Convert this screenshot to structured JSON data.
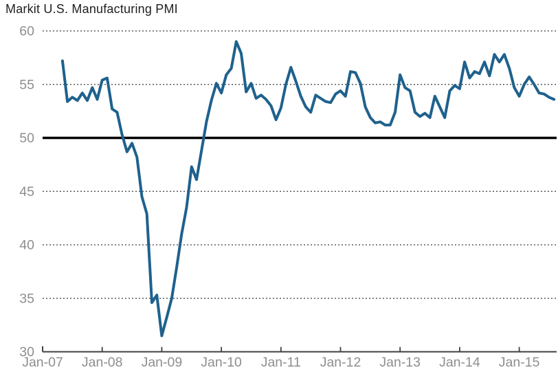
{
  "title": "Markit U.S. Manufacturing PMI",
  "chart_data": {
    "type": "line",
    "title": "Markit U.S. Manufacturing PMI",
    "xlabel": "",
    "ylabel": "",
    "ylim": [
      30,
      60
    ],
    "y_ticks": [
      30,
      35,
      40,
      45,
      50,
      55,
      60
    ],
    "x_tick_labels": [
      "Jan-07",
      "Jan-08",
      "Jan-09",
      "Jan-10",
      "Jan-11",
      "Jan-12",
      "Jan-13",
      "Jan-14",
      "Jan-15"
    ],
    "grid": "dotted horizontal gridlines, heavy solid reference line at 50",
    "baseline": 50,
    "legend": "none",
    "series": [
      {
        "name": "Markit U.S. Manufacturing PMI",
        "frequency": "monthly",
        "months": [
          "May-07",
          "Jun-07",
          "Jul-07",
          "Aug-07",
          "Sep-07",
          "Oct-07",
          "Nov-07",
          "Dec-07",
          "Jan-08",
          "Feb-08",
          "Mar-08",
          "Apr-08",
          "May-08",
          "Jun-08",
          "Jul-08",
          "Aug-08",
          "Sep-08",
          "Oct-08",
          "Nov-08",
          "Dec-08",
          "Jan-09",
          "Feb-09",
          "Mar-09",
          "Apr-09",
          "May-09",
          "Jun-09",
          "Jul-09",
          "Aug-09",
          "Sep-09",
          "Oct-09",
          "Nov-09",
          "Dec-09",
          "Jan-10",
          "Feb-10",
          "Mar-10",
          "Apr-10",
          "May-10",
          "Jun-10",
          "Jul-10",
          "Aug-10",
          "Sep-10",
          "Oct-10",
          "Nov-10",
          "Dec-10",
          "Jan-11",
          "Feb-11",
          "Mar-11",
          "Apr-11",
          "May-11",
          "Jun-11",
          "Jul-11",
          "Aug-11",
          "Sep-11",
          "Oct-11",
          "Nov-11",
          "Dec-11",
          "Jan-12",
          "Feb-12",
          "Mar-12",
          "Apr-12",
          "May-12",
          "Jun-12",
          "Jul-12",
          "Aug-12",
          "Sep-12",
          "Oct-12",
          "Nov-12",
          "Dec-12",
          "Jan-13",
          "Feb-13",
          "Mar-13",
          "Apr-13",
          "May-13",
          "Jun-13",
          "Jul-13",
          "Aug-13",
          "Sep-13",
          "Oct-13",
          "Nov-13",
          "Dec-13",
          "Jan-14",
          "Feb-14",
          "Mar-14",
          "Apr-14",
          "May-14",
          "Jun-14",
          "Jul-14",
          "Aug-14",
          "Sep-14",
          "Oct-14",
          "Nov-14",
          "Dec-14",
          "Jan-15",
          "Feb-15",
          "Mar-15",
          "Apr-15",
          "May-15",
          "Jun-15",
          "Jul-15",
          "Aug-15"
        ],
        "values": [
          57.2,
          53.4,
          53.8,
          53.5,
          54.2,
          53.5,
          54.7,
          53.6,
          55.4,
          55.6,
          52.7,
          52.4,
          50.3,
          48.7,
          49.5,
          48.2,
          44.5,
          42.9,
          34.6,
          35.3,
          31.5,
          33.2,
          35.0,
          37.9,
          41.0,
          43.5,
          47.3,
          46.1,
          48.8,
          51.5,
          53.5,
          55.1,
          54.2,
          55.9,
          56.5,
          59.0,
          57.9,
          54.3,
          55.1,
          53.7,
          54.0,
          53.6,
          53.0,
          51.7,
          52.8,
          55.0,
          56.6,
          55.3,
          53.9,
          52.9,
          52.4,
          54.0,
          53.7,
          53.4,
          53.3,
          54.1,
          54.4,
          53.9,
          56.2,
          56.1,
          55.1,
          52.9,
          51.9,
          51.4,
          51.5,
          51.2,
          51.2,
          52.4,
          55.9,
          54.7,
          54.4,
          52.4,
          52.0,
          52.3,
          51.9,
          53.9,
          52.9,
          51.9,
          54.4,
          54.9,
          54.6,
          57.1,
          55.6,
          56.2,
          56.0,
          57.1,
          55.8,
          57.8,
          57.1,
          57.8,
          56.5,
          54.7,
          53.9,
          55.0,
          55.7,
          55.0,
          54.2,
          54.1,
          53.8,
          53.6
        ]
      }
    ],
    "colors": {
      "line": "#1F618D",
      "baseline": "#000000",
      "grid": "#3a3a3a",
      "axis": "#404040",
      "tick_label": "#8e8e8e",
      "title": "#1f1f1f",
      "background": "#ffffff"
    }
  }
}
